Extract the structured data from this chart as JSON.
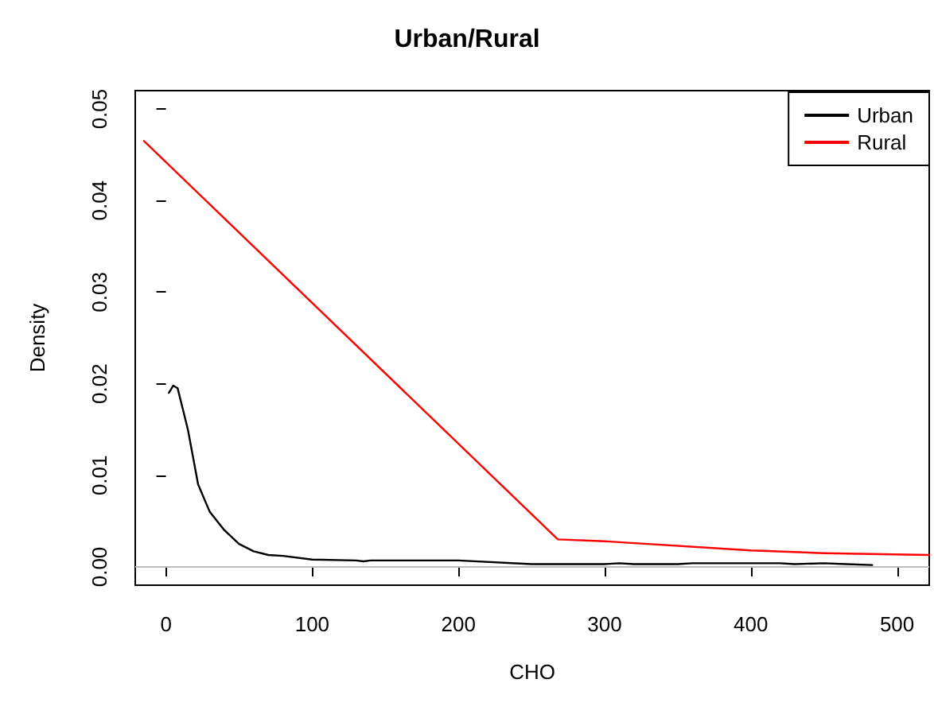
{
  "chart_data": {
    "type": "line",
    "title": "Urban/Rural",
    "xlabel": "CHO",
    "ylabel": "Density",
    "xlim": [
      -21,
      522
    ],
    "xticks": [
      0,
      100,
      200,
      300,
      400,
      500
    ],
    "ylim": [
      -0.002,
      0.052
    ],
    "yticks": [
      {
        "value": 0,
        "label": "0.00"
      },
      {
        "value": 0.01,
        "label": "0.01"
      },
      {
        "value": 0.02,
        "label": "0.02"
      },
      {
        "value": 0.03,
        "label": "0.03"
      },
      {
        "value": 0.04,
        "label": "0.04"
      },
      {
        "value": 0.05,
        "label": "0.05"
      }
    ],
    "series": [
      {
        "name": "Urban",
        "color": "#000000",
        "x": [
          2,
          5,
          8,
          15,
          22,
          30,
          40,
          50,
          60,
          70,
          80,
          100,
          130,
          135,
          140,
          200,
          250,
          300,
          310,
          320,
          350,
          360,
          420,
          430,
          450,
          465,
          483
        ],
        "values": [
          0.019,
          0.0198,
          0.0195,
          0.015,
          0.009,
          0.006,
          0.004,
          0.0025,
          0.0017,
          0.0013,
          0.0012,
          0.0008,
          0.0007,
          0.0006,
          0.0007,
          0.0007,
          0.0003,
          0.0003,
          0.0004,
          0.0003,
          0.0003,
          0.0004,
          0.0004,
          0.0003,
          0.0004,
          0.0003,
          0.0002
        ]
      },
      {
        "name": "Rural",
        "color": "#ff0000",
        "x": [
          -15,
          268,
          300,
          400,
          450,
          522
        ],
        "values": [
          0.0465,
          0.003,
          0.0028,
          0.0018,
          0.0015,
          0.0013
        ]
      }
    ],
    "ref_lines": [
      {
        "axis": "y",
        "value": 0,
        "color": "#bebebe"
      }
    ],
    "legend": "top right",
    "grid": false,
    "marker": "none",
    "line_style": "solid"
  }
}
